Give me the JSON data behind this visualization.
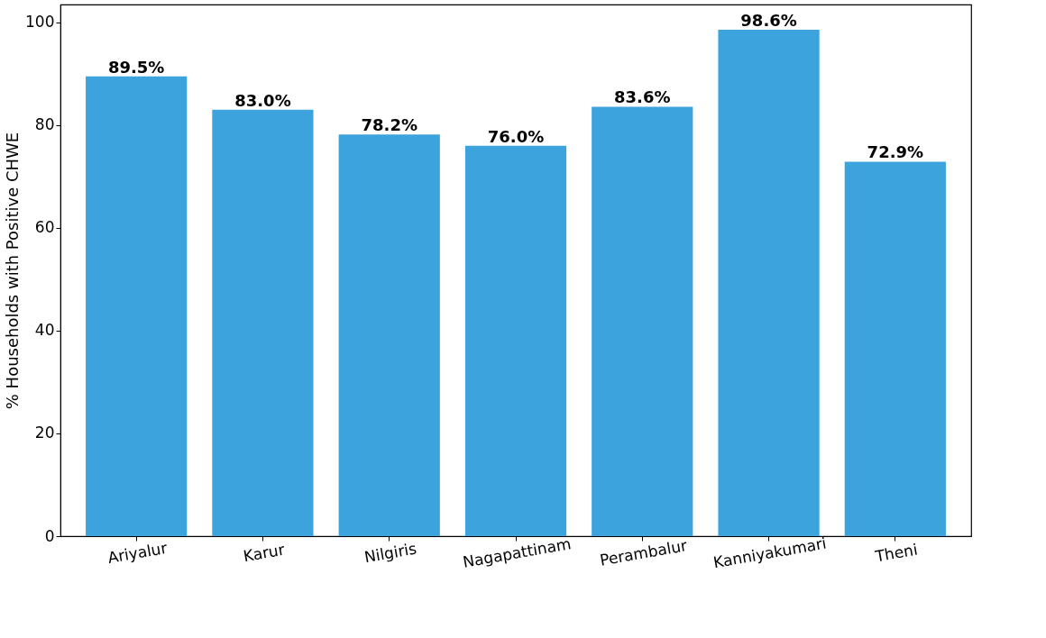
{
  "chart_data": {
    "type": "bar",
    "ylabel": "% Households with Positive CHWE",
    "categories": [
      "Ariyalur",
      "Karur",
      "Nilgiris",
      "Nagapattinam",
      "Perambalur",
      "Kanniyakumari",
      "Theni"
    ],
    "values": [
      89.5,
      83.0,
      78.2,
      76.0,
      83.6,
      98.6,
      72.9
    ],
    "value_labels": [
      "89.5%",
      "83.0%",
      "78.2%",
      "76.0%",
      "83.6%",
      "98.6%",
      "72.9%"
    ],
    "color": "#3ca3dd",
    "ylim": [
      0,
      103.5
    ],
    "yticks": [
      0,
      20,
      40,
      60,
      80,
      100
    ],
    "grid": false
  }
}
